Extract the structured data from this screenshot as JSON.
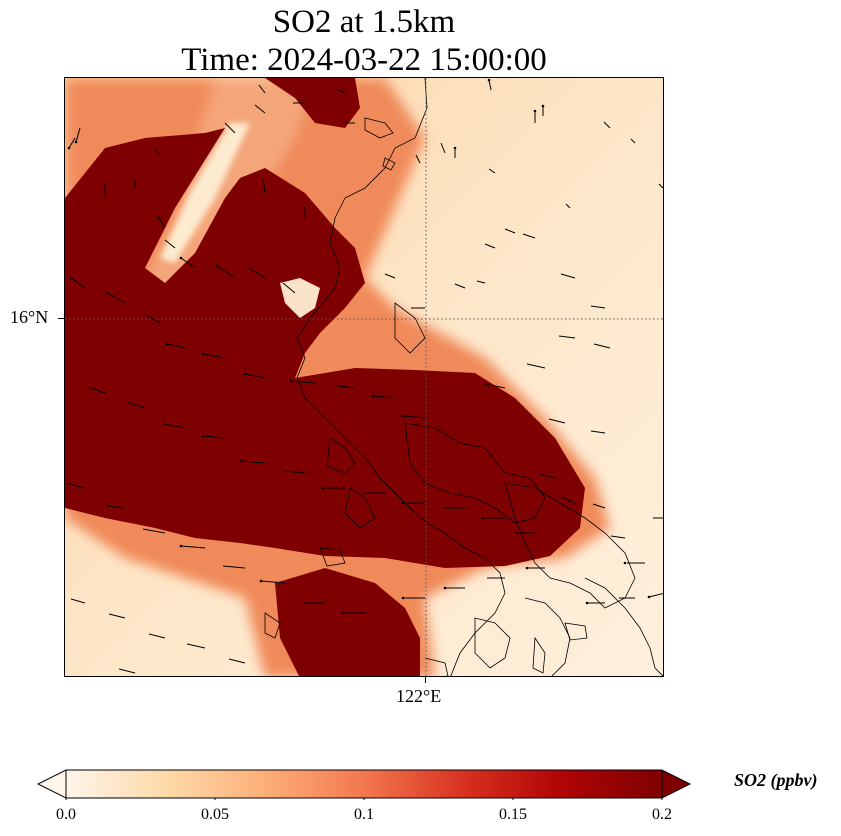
{
  "title": {
    "line1": "SO2 at 1.5km",
    "line2": "Time: 2024-03-22 15:00:00"
  },
  "axes": {
    "latitude_label": "16°N",
    "longitude_label": "122°E"
  },
  "colorbar": {
    "label": "SO2 (ppbv)",
    "ticks": [
      "0.0",
      "0.05",
      "0.1",
      "0.15",
      "0.2"
    ],
    "colormap": [
      "#fff5eb",
      "#fdd9a8",
      "#fcb07a",
      "#f3774f",
      "#d7301f",
      "#b10505",
      "#7f0000"
    ],
    "extend": "both"
  },
  "map": {
    "plume_color": "#7f0000",
    "background_color": "#fdebd3",
    "gridline_style": "dotted",
    "wind_vectors": true,
    "coastlines": true
  }
}
